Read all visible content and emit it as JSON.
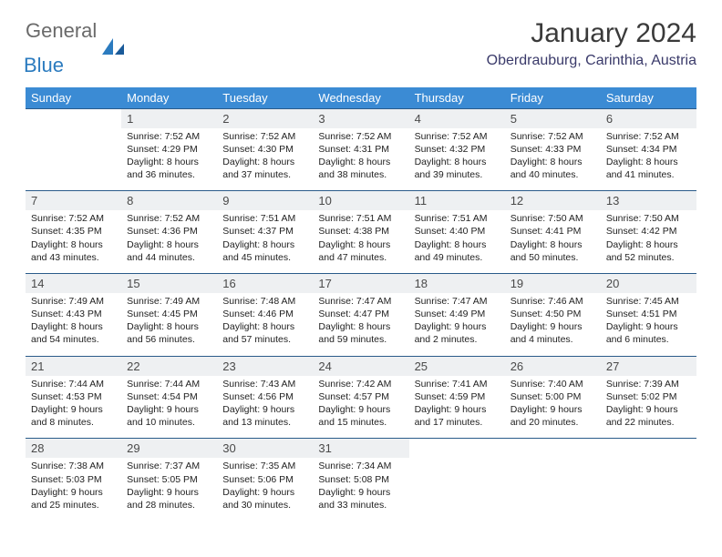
{
  "logo": {
    "word1": "General",
    "word2": "Blue"
  },
  "title": "January 2024",
  "location": "Oberdrauburg, Carinthia, Austria",
  "colors": {
    "header_bg": "#3b8bd4",
    "header_text": "#ffffff",
    "daynum_bg": "#eef0f2",
    "border": "#2a5b8a",
    "logo_gray": "#6a6a6a",
    "logo_blue": "#2b7bbf"
  },
  "weekdays": [
    "Sunday",
    "Monday",
    "Tuesday",
    "Wednesday",
    "Thursday",
    "Friday",
    "Saturday"
  ],
  "weeks": [
    {
      "nums": [
        "",
        "1",
        "2",
        "3",
        "4",
        "5",
        "6"
      ],
      "cells": [
        null,
        {
          "sunrise": "7:52 AM",
          "sunset": "4:29 PM",
          "daylight": "8 hours and 36 minutes."
        },
        {
          "sunrise": "7:52 AM",
          "sunset": "4:30 PM",
          "daylight": "8 hours and 37 minutes."
        },
        {
          "sunrise": "7:52 AM",
          "sunset": "4:31 PM",
          "daylight": "8 hours and 38 minutes."
        },
        {
          "sunrise": "7:52 AM",
          "sunset": "4:32 PM",
          "daylight": "8 hours and 39 minutes."
        },
        {
          "sunrise": "7:52 AM",
          "sunset": "4:33 PM",
          "daylight": "8 hours and 40 minutes."
        },
        {
          "sunrise": "7:52 AM",
          "sunset": "4:34 PM",
          "daylight": "8 hours and 41 minutes."
        }
      ]
    },
    {
      "nums": [
        "7",
        "8",
        "9",
        "10",
        "11",
        "12",
        "13"
      ],
      "cells": [
        {
          "sunrise": "7:52 AM",
          "sunset": "4:35 PM",
          "daylight": "8 hours and 43 minutes."
        },
        {
          "sunrise": "7:52 AM",
          "sunset": "4:36 PM",
          "daylight": "8 hours and 44 minutes."
        },
        {
          "sunrise": "7:51 AM",
          "sunset": "4:37 PM",
          "daylight": "8 hours and 45 minutes."
        },
        {
          "sunrise": "7:51 AM",
          "sunset": "4:38 PM",
          "daylight": "8 hours and 47 minutes."
        },
        {
          "sunrise": "7:51 AM",
          "sunset": "4:40 PM",
          "daylight": "8 hours and 49 minutes."
        },
        {
          "sunrise": "7:50 AM",
          "sunset": "4:41 PM",
          "daylight": "8 hours and 50 minutes."
        },
        {
          "sunrise": "7:50 AM",
          "sunset": "4:42 PM",
          "daylight": "8 hours and 52 minutes."
        }
      ]
    },
    {
      "nums": [
        "14",
        "15",
        "16",
        "17",
        "18",
        "19",
        "20"
      ],
      "cells": [
        {
          "sunrise": "7:49 AM",
          "sunset": "4:43 PM",
          "daylight": "8 hours and 54 minutes."
        },
        {
          "sunrise": "7:49 AM",
          "sunset": "4:45 PM",
          "daylight": "8 hours and 56 minutes."
        },
        {
          "sunrise": "7:48 AM",
          "sunset": "4:46 PM",
          "daylight": "8 hours and 57 minutes."
        },
        {
          "sunrise": "7:47 AM",
          "sunset": "4:47 PM",
          "daylight": "8 hours and 59 minutes."
        },
        {
          "sunrise": "7:47 AM",
          "sunset": "4:49 PM",
          "daylight": "9 hours and 2 minutes."
        },
        {
          "sunrise": "7:46 AM",
          "sunset": "4:50 PM",
          "daylight": "9 hours and 4 minutes."
        },
        {
          "sunrise": "7:45 AM",
          "sunset": "4:51 PM",
          "daylight": "9 hours and 6 minutes."
        }
      ]
    },
    {
      "nums": [
        "21",
        "22",
        "23",
        "24",
        "25",
        "26",
        "27"
      ],
      "cells": [
        {
          "sunrise": "7:44 AM",
          "sunset": "4:53 PM",
          "daylight": "9 hours and 8 minutes."
        },
        {
          "sunrise": "7:44 AM",
          "sunset": "4:54 PM",
          "daylight": "9 hours and 10 minutes."
        },
        {
          "sunrise": "7:43 AM",
          "sunset": "4:56 PM",
          "daylight": "9 hours and 13 minutes."
        },
        {
          "sunrise": "7:42 AM",
          "sunset": "4:57 PM",
          "daylight": "9 hours and 15 minutes."
        },
        {
          "sunrise": "7:41 AM",
          "sunset": "4:59 PM",
          "daylight": "9 hours and 17 minutes."
        },
        {
          "sunrise": "7:40 AM",
          "sunset": "5:00 PM",
          "daylight": "9 hours and 20 minutes."
        },
        {
          "sunrise": "7:39 AM",
          "sunset": "5:02 PM",
          "daylight": "9 hours and 22 minutes."
        }
      ]
    },
    {
      "nums": [
        "28",
        "29",
        "30",
        "31",
        "",
        "",
        ""
      ],
      "cells": [
        {
          "sunrise": "7:38 AM",
          "sunset": "5:03 PM",
          "daylight": "9 hours and 25 minutes."
        },
        {
          "sunrise": "7:37 AM",
          "sunset": "5:05 PM",
          "daylight": "9 hours and 28 minutes."
        },
        {
          "sunrise": "7:35 AM",
          "sunset": "5:06 PM",
          "daylight": "9 hours and 30 minutes."
        },
        {
          "sunrise": "7:34 AM",
          "sunset": "5:08 PM",
          "daylight": "9 hours and 33 minutes."
        },
        null,
        null,
        null
      ]
    }
  ],
  "labels": {
    "sunrise": "Sunrise:",
    "sunset": "Sunset:",
    "daylight": "Daylight:"
  }
}
